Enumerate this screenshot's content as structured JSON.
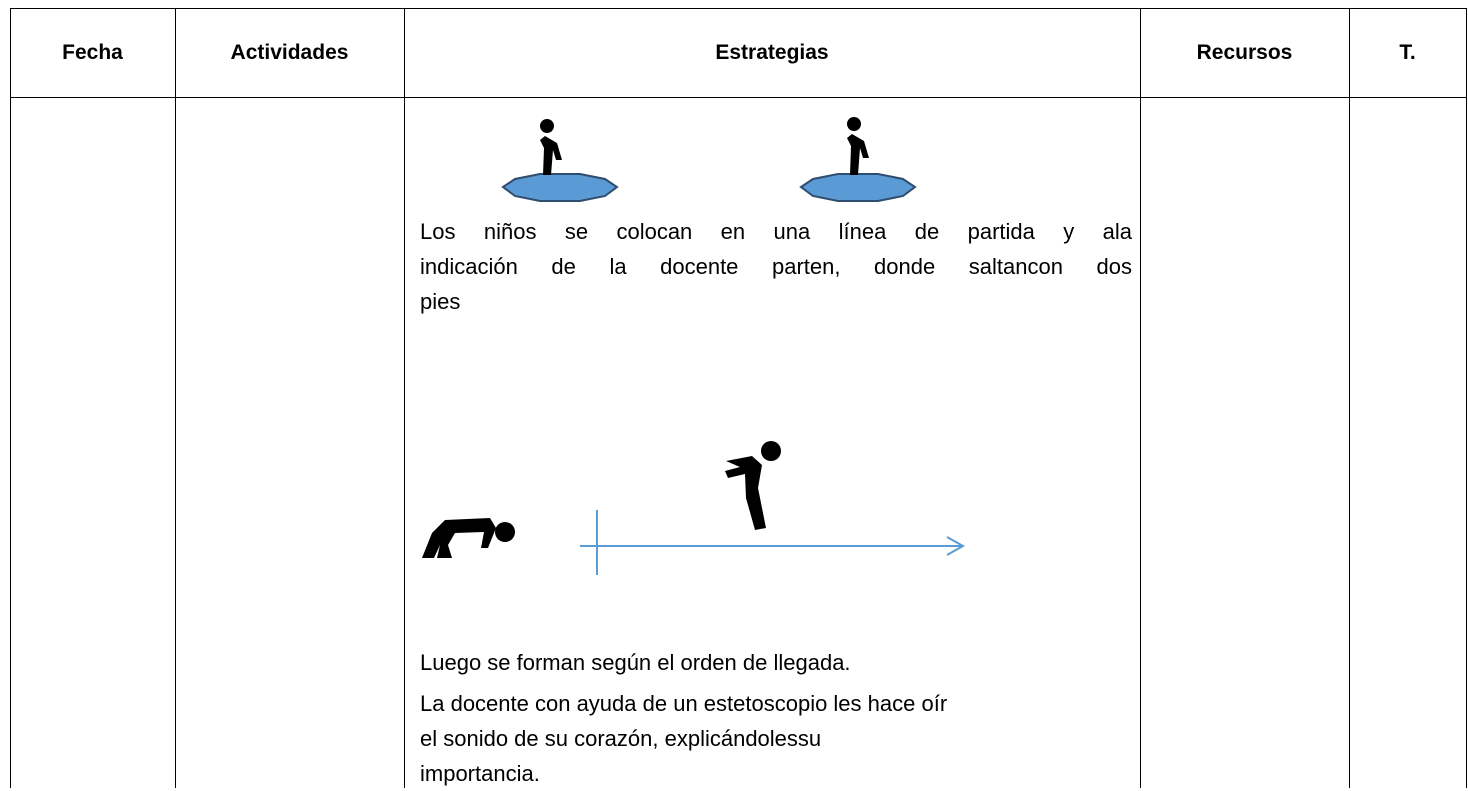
{
  "table": {
    "headers": [
      "Fecha",
      "Actividades",
      "Estrategias",
      "Recursos",
      "T."
    ],
    "strategies": {
      "paragraph_1": [
        "Los niños se colocan en una línea de partida y ala",
        "indicación de la docente parten, donde saltancon dos",
        "pies"
      ],
      "paragraph_2": [
        "Luego se forman según el orden de llegada."
      ],
      "paragraph_3": [
        "La docente con ayuda de un estetoscopio les hace oír",
        "el sonido de su corazón, explicándolessu",
        "importancia."
      ]
    }
  }
}
